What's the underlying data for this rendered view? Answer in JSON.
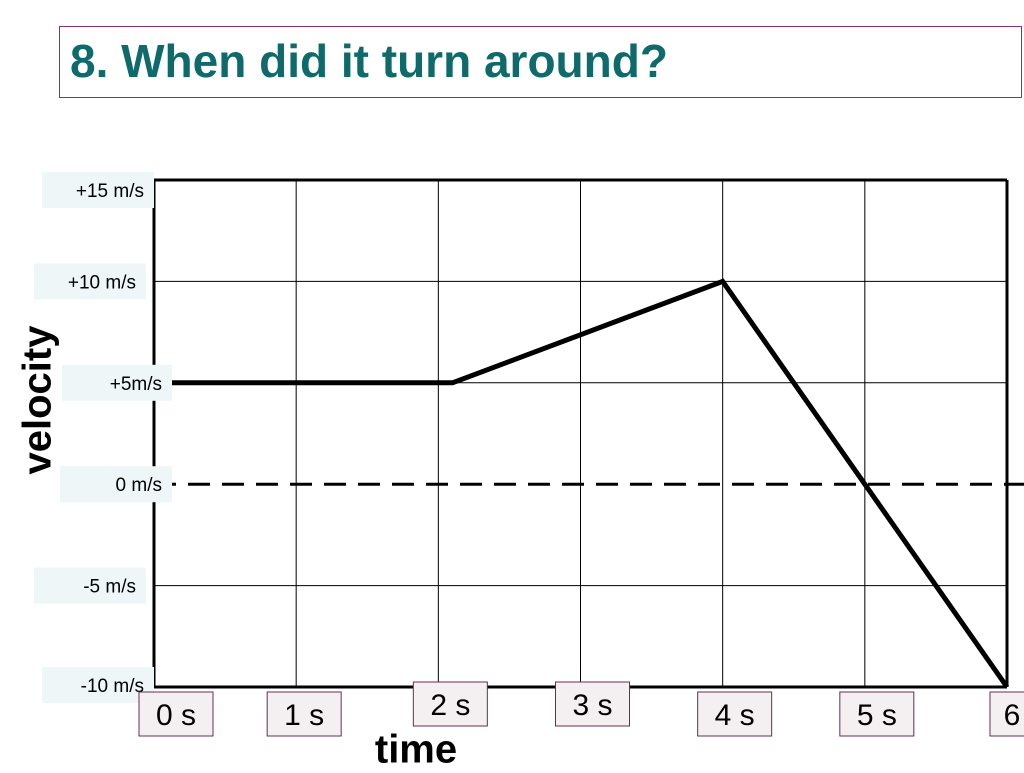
{
  "title": "8. When did it turn around?",
  "colors": {
    "title": "#0e6a6b",
    "title_border": "#8a2f6d",
    "line": "#000000"
  },
  "chart_data": {
    "type": "line",
    "title": "8. When did it turn around?",
    "xlabel": "time",
    "ylabel": "velocity",
    "x_tick_labels": [
      "0 s",
      "1 s",
      "2 s",
      "3 s",
      "4 s",
      "5 s",
      "6"
    ],
    "x_ticks": [
      0,
      1,
      2,
      3,
      4,
      5,
      6
    ],
    "y_tick_labels": [
      "+15 m/s",
      "+10 m/s",
      "+5m/s",
      "0 m/s",
      "-5 m/s",
      "-10 m/s"
    ],
    "y_ticks": [
      15,
      10,
      5,
      0,
      -5,
      -10
    ],
    "xlim": [
      0,
      6
    ],
    "ylim": [
      -10,
      15
    ],
    "grid": true,
    "zero_line": "dashed",
    "series": [
      {
        "x": [
          0,
          2.1,
          4,
          6
        ],
        "y": [
          5,
          5,
          10,
          -10
        ]
      }
    ]
  }
}
